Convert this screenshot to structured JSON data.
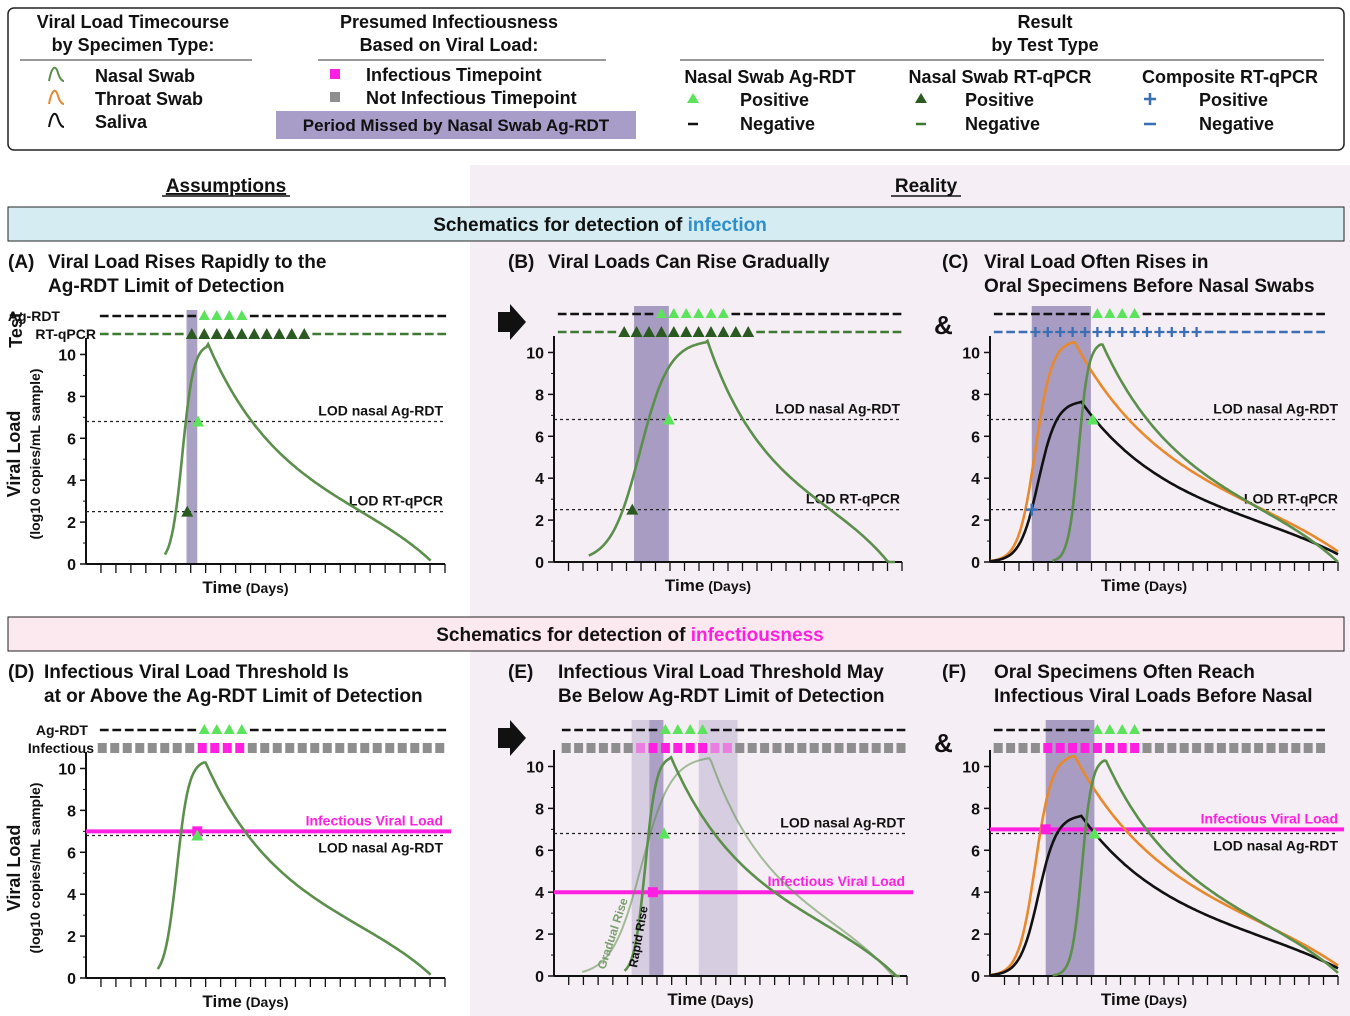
{
  "legend": {
    "col1_title_l1": "Viral Load Timecourse",
    "col1_title_l2": "by Specimen Type:",
    "col1_items": [
      {
        "label": "Nasal Swab",
        "color": "#5b8f4b"
      },
      {
        "label": "Throat Swab",
        "color": "#e8892d"
      },
      {
        "label": "Saliva",
        "color": "#111111"
      }
    ],
    "col2_title_l1": "Presumed Infectiousness",
    "col2_title_l2": "Based on Viral Load:",
    "infectious_label": "Infectious Timepoint",
    "not_infectious_label": "Not Infectious Timepoint",
    "missed_label": "Period Missed by Nasal Swab Ag-RDT",
    "col3_title_l1": "Result",
    "col3_title_l2": "by Test Type",
    "test_types": [
      {
        "name": "Nasal Swab Ag-RDT",
        "positive": "Positive",
        "negative": "Negative"
      },
      {
        "name": "Nasal Swab RT-qPCR",
        "positive": "Positive",
        "negative": "Negative"
      },
      {
        "name": "Composite RT-qPCR",
        "positive": "Positive",
        "negative": "Negative"
      }
    ]
  },
  "headers": {
    "assumptions": "Assumptions",
    "reality": "Reality"
  },
  "banner_infection": {
    "prefix": "Schematics for detection of ",
    "keyword": "infection"
  },
  "banner_infectiousness": {
    "prefix": "Schematics for detection of ",
    "keyword": "infectiousness"
  },
  "panels": {
    "A": {
      "tag": "(A)",
      "title_l1": "Viral Load Rises Rapidly to the",
      "title_l2": "Ag-RDT Limit of Detection"
    },
    "B": {
      "tag": "(B)",
      "title_l1": "Viral Loads Can Rise Gradually",
      "title_l2": ""
    },
    "C": {
      "tag": "(C)",
      "title_l1": "Viral Load Often Rises in",
      "title_l2": "Oral Specimens Before Nasal Swabs"
    },
    "D": {
      "tag": "(D)",
      "title_l1": "Infectious Viral Load Threshold Is",
      "title_l2": "at or Above the Ag-RDT Limit of Detection"
    },
    "E": {
      "tag": "(E)",
      "title_l1": "Infectious Viral Load Threshold May",
      "title_l2": "Be Below Ag-RDT Limit of Detection"
    },
    "F": {
      "tag": "(F)",
      "title_l1": "Oral Specimens Often Reach",
      "title_l2": "Infectious Viral Loads Before Nasal"
    }
  },
  "axis": {
    "test_label": "Test",
    "y_label_l1": "Viral Load",
    "y_label_l2": "(log10 copies/mL sample)",
    "x_label": "Time",
    "x_unit": "(Days)",
    "y_ticks": [
      "0",
      "2",
      "4",
      "6",
      "8",
      "10"
    ]
  },
  "rows": {
    "ag_rdt": "Ag-RDT",
    "rt_qpcr": "RT-qPCR",
    "infectious": "Infectious"
  },
  "lines": {
    "lod_ag": "LOD nasal Ag-RDT",
    "lod_pcr": "LOD RT-qPCR",
    "infectious_vl": "Infectious Viral Load",
    "gradual_rise": "Gradual Rise",
    "rapid_rise": "Rapid Rise"
  },
  "ampersand": "&",
  "colors": {
    "nasal": "#5b8f4b",
    "throat": "#e8892d",
    "saliva": "#111111",
    "ag_positive": "#5be35b",
    "pcr_positive": "#2a5a22",
    "pcr_negative": "#3f7a35",
    "composite": "#3a6fb5",
    "infectious": "#ff1fe0",
    "not_infectious": "#8e8e8e",
    "missed": "#8d80b0",
    "banner_infection_bg": "#d5edf2",
    "banner_infectiousness_bg": "#fce8ef",
    "reality_bg": "#f6eef5",
    "infection_word": "#2f8fc9"
  }
}
